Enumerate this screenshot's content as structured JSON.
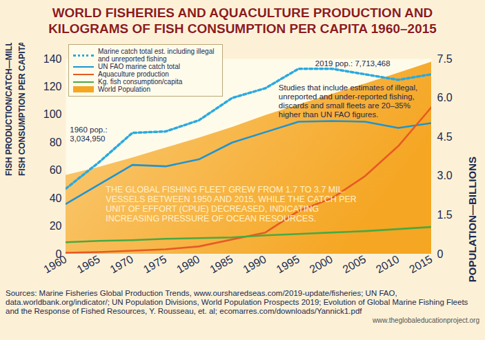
{
  "chart_data": {
    "type": "line",
    "title": "WORLD FISHERIES AND AQUACULTURE PRODUCTION AND\nKILOGRAMS OF FISH CONSUMPTION PER CAPITA 1960–2015",
    "x": [
      1960,
      1965,
      1970,
      1975,
      1980,
      1985,
      1990,
      1995,
      2000,
      2005,
      2010,
      2015
    ],
    "series": [
      {
        "name": "Marine catch total est. including illegal and unreported fishing",
        "type": "line",
        "color": "#2aa9e0",
        "line_style": "dotted",
        "values": [
          47,
          66,
          87,
          88,
          96,
          112,
          119,
          133,
          133,
          129,
          125,
          129
        ]
      },
      {
        "name": "UN FAO marine catch total",
        "type": "line",
        "color": "#1e94d2",
        "line_style": "solid",
        "values": [
          36,
          50,
          64,
          63,
          68,
          80,
          87.5,
          95,
          95.5,
          95,
          90.5,
          94
        ]
      },
      {
        "name": "Aquaculture production",
        "type": "line",
        "color": "#e65a24",
        "line_style": "solid",
        "values": [
          1,
          1.5,
          2.5,
          3.5,
          5.5,
          10.5,
          15.5,
          31,
          40,
          56,
          77.5,
          105.5
        ]
      },
      {
        "name": "Kg. fish consumption/capita",
        "type": "line",
        "color": "#49a942",
        "line_style": "solid",
        "values": [
          8.5,
          9.5,
          10,
          11,
          11.5,
          12,
          13.5,
          14.5,
          15.5,
          16.5,
          18,
          19.5
        ]
      },
      {
        "name": "World Population",
        "type": "area",
        "axis": "y2",
        "color": "#f5a623",
        "values": [
          3.03,
          3.34,
          3.7,
          4.08,
          4.46,
          4.87,
          5.33,
          5.74,
          6.14,
          6.54,
          6.96,
          7.38
        ]
      }
    ],
    "xlim": [
      1960,
      2015
    ],
    "xticks": [
      1960,
      1965,
      1970,
      1975,
      1980,
      1985,
      1990,
      1995,
      2000,
      2005,
      2010,
      2015
    ],
    "ylim": [
      0,
      140
    ],
    "yticks": [
      0,
      20,
      40,
      60,
      80,
      100,
      120,
      140
    ],
    "y2lim": [
      0,
      7.5
    ],
    "y2ticks": [
      0,
      1.5,
      {
        "value": 3,
        "label": "3.0"
      },
      4.5,
      {
        "value": 6,
        "label": "6.0"
      },
      7.5
    ],
    "ylabel": [
      "FISH PRODUCTION/CATCH—MILLIONS OF TONS",
      "FISH CONSUMPTION PER CAPITA—KILOGRAM"
    ],
    "y2label": "POPULATION—BILLIONS",
    "legend": "top-left",
    "annotations": [
      "2019 pop.: 7,713,468",
      "Studies that include estimates of illegal,\nunreported and under-reported fishing,\ndiscards and small fleets are 20–35%\nhigher than UN FAO figures.",
      "1960 pop.:\n3,034,950",
      "THE GLOBAL FISHING FLEET GREW FROM 1.7 TO 3.7 MIL.\nVESSELS BETWEEN 1950 AND 2015, WHILE THE CATCH PER\nUNIT OF EFFORT (CPUE) DECREASED, INDICATING\nINCREASING PRESSURE OF OCEAN RESOURCES."
    ],
    "sources": "Sources: Marine Fisheries Global Production Trends, www.oursharedseas.com/2019-update/fisheries; UN FAO, data.worldbank.org/indicator/; UN Population Divisions, World Population Prospects 2019; Evolution of Global Marine Fishing Fleets and the Response of Fished Resources, Y. Rousseau, et. al; ecomarres.com/downloads/Yannick1.pdf",
    "credit": "www.theglobaleducationproject.org"
  }
}
